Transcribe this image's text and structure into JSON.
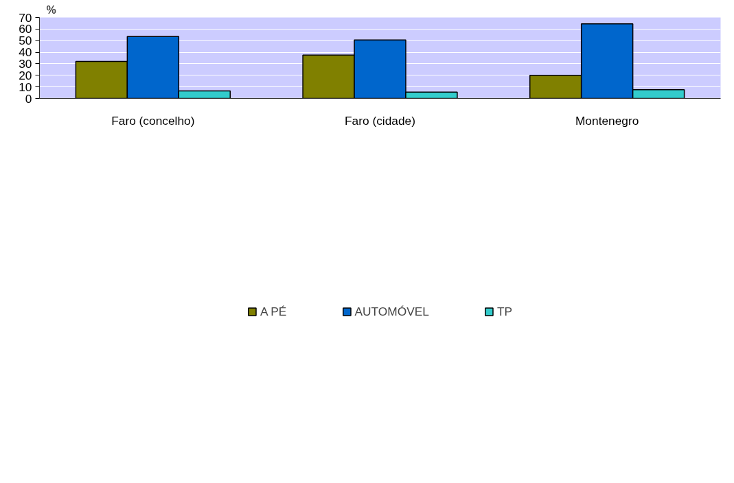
{
  "chart_data": {
    "type": "bar",
    "ylabel": "%",
    "categories": [
      "Faro (concelho)",
      "Faro (cidade)",
      "Montenegro"
    ],
    "series": [
      {
        "name": "A PÉ",
        "color": "#808000",
        "values": [
          32,
          37.5,
          20
        ]
      },
      {
        "name": "AUTOMÓVEL",
        "color": "#0066cc",
        "values": [
          53.5,
          50.5,
          64.5
        ]
      },
      {
        "name": "TP",
        "color": "#33cccc",
        "values": [
          6.5,
          5.5,
          7.5
        ]
      }
    ],
    "ylim": [
      0,
      70
    ],
    "yticks": [
      0,
      10,
      20,
      30,
      40,
      50,
      60,
      70
    ],
    "grid": "y",
    "legend": "bottom"
  }
}
